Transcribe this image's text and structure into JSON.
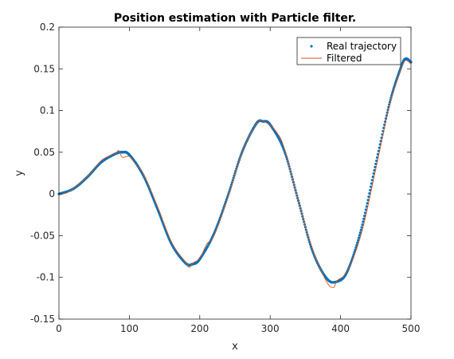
{
  "chart_data": {
    "type": "line",
    "title": "Position estimation with Particle filter.",
    "xlabel": "x",
    "ylabel": "y",
    "xlim": [
      0,
      500
    ],
    "ylim": [
      -0.15,
      0.2
    ],
    "xticks": [
      "0",
      "100",
      "200",
      "300",
      "400",
      "500"
    ],
    "yticks": [
      "-0.15",
      "-0.1",
      "-0.05",
      "0",
      "0.05",
      "0.1",
      "0.15",
      "0.2"
    ],
    "grid": false,
    "legend_position": "top-right",
    "series": [
      {
        "name": "Real trajectory",
        "style": "dots",
        "color": "#0072BD",
        "x": [
          0,
          20,
          40,
          60,
          80,
          90,
          100,
          120,
          140,
          160,
          180,
          190,
          200,
          220,
          240,
          260,
          280,
          290,
          300,
          320,
          340,
          360,
          380,
          395,
          410,
          430,
          450,
          470,
          485,
          492,
          500
        ],
        "y": [
          0.0,
          0.006,
          0.02,
          0.038,
          0.048,
          0.05,
          0.047,
          0.022,
          -0.018,
          -0.06,
          -0.083,
          -0.084,
          -0.078,
          -0.048,
          -0.002,
          0.05,
          0.084,
          0.087,
          0.083,
          0.052,
          -0.008,
          -0.068,
          -0.101,
          -0.105,
          -0.092,
          -0.04,
          0.036,
          0.11,
          0.15,
          0.162,
          0.158
        ]
      },
      {
        "name": "Filtered",
        "style": "line",
        "color": "#D95319",
        "x": [
          0,
          10,
          20,
          30,
          40,
          50,
          60,
          70,
          80,
          85,
          90,
          100,
          110,
          120,
          140,
          160,
          180,
          185,
          190,
          200,
          210,
          220,
          240,
          260,
          280,
          290,
          300,
          310,
          320,
          340,
          360,
          380,
          390,
          395,
          410,
          430,
          450,
          470,
          485,
          492,
          500
        ],
        "y": [
          0.0,
          0.001,
          0.006,
          0.013,
          0.02,
          0.03,
          0.04,
          0.045,
          0.048,
          0.052,
          0.044,
          0.045,
          0.035,
          0.024,
          -0.015,
          -0.058,
          -0.082,
          -0.088,
          -0.083,
          -0.077,
          -0.06,
          -0.05,
          -0.004,
          0.05,
          0.084,
          0.087,
          0.082,
          0.073,
          0.055,
          -0.008,
          -0.066,
          -0.105,
          -0.112,
          -0.104,
          -0.092,
          -0.046,
          0.03,
          0.108,
          0.148,
          0.16,
          0.156
        ]
      }
    ]
  }
}
